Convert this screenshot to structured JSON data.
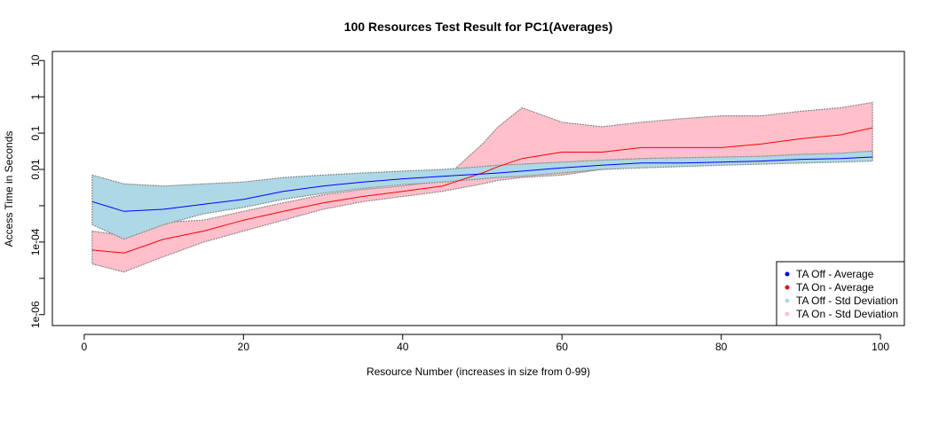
{
  "chart_data": {
    "type": "line",
    "title": "100 Resources Test Result for PC1(Averages)",
    "xlabel": "Resource Number (increases in size from 0-99)",
    "ylabel": "Access Time in Seconds",
    "xlim": [
      -4,
      103
    ],
    "ylim": [
      -6.3,
      1.25
    ],
    "y_scale": "log10",
    "x_ticks": [
      0,
      20,
      40,
      60,
      80,
      100
    ],
    "x_tick_labels": [
      "0",
      "20",
      "40",
      "60",
      "80",
      "100"
    ],
    "y_ticks": [
      1e-06,
      1e-05,
      0.0001,
      0.001,
      0.01,
      0.1,
      1,
      10
    ],
    "y_tick_labels": [
      "1e-06",
      "",
      "1e-04",
      "",
      "0.01",
      "0.1",
      "1",
      "10"
    ],
    "grid": false,
    "legend_position": "bottom-right",
    "legend": [
      {
        "label": "TA Off - Average",
        "color": "#0000ff"
      },
      {
        "label": "TA On - Average",
        "color": "#ff0000"
      },
      {
        "label": "TA Off - Std Deviation",
        "color": "#add8e6"
      },
      {
        "label": "TA On - Std Deviation",
        "color": "#ffc0cb"
      }
    ],
    "x": [
      1,
      5,
      10,
      15,
      20,
      25,
      30,
      35,
      40,
      45,
      50,
      52,
      55,
      60,
      65,
      70,
      75,
      80,
      85,
      90,
      95,
      99
    ],
    "series": [
      {
        "name": "TA Off - Average",
        "color": "#0000ff",
        "values": [
          0.0013,
          0.0007,
          0.0008,
          0.0011,
          0.0015,
          0.0025,
          0.0035,
          0.0045,
          0.0055,
          0.0065,
          0.0075,
          0.008,
          0.009,
          0.011,
          0.013,
          0.015,
          0.015,
          0.016,
          0.017,
          0.019,
          0.02,
          0.022
        ]
      },
      {
        "name": "TA On - Average",
        "color": "#ff0000",
        "values": [
          6e-05,
          5e-05,
          0.00012,
          0.0002,
          0.0004,
          0.0007,
          0.0012,
          0.0018,
          0.0025,
          0.0035,
          0.008,
          0.012,
          0.02,
          0.03,
          0.03,
          0.04,
          0.04,
          0.04,
          0.05,
          0.07,
          0.09,
          0.14
        ]
      },
      {
        "name": "TA Off - Std Deviation",
        "color": "#add8e6",
        "lower": [
          0.0003,
          0.00012,
          0.0003,
          0.0006,
          0.0009,
          0.0015,
          0.0022,
          0.003,
          0.0038,
          0.0045,
          0.0055,
          0.006,
          0.0065,
          0.008,
          0.01,
          0.011,
          0.012,
          0.013,
          0.014,
          0.015,
          0.016,
          0.017
        ],
        "upper": [
          0.007,
          0.004,
          0.0035,
          0.004,
          0.0045,
          0.006,
          0.007,
          0.008,
          0.009,
          0.01,
          0.012,
          0.013,
          0.014,
          0.016,
          0.018,
          0.02,
          0.021,
          0.022,
          0.023,
          0.026,
          0.028,
          0.032
        ]
      },
      {
        "name": "TA On - Std Deviation",
        "color": "#ffc0cb",
        "lower": [
          2.5e-05,
          1.5e-05,
          4e-05,
          0.0001,
          0.0002,
          0.0004,
          0.0008,
          0.0013,
          0.0018,
          0.0025,
          0.004,
          0.005,
          0.006,
          0.007,
          0.01,
          0.012,
          0.013,
          0.014,
          0.015,
          0.016,
          0.017,
          0.018
        ]
      },
      {
        "name": "",
        "color": "#ffc0cb",
        "values": [
          0.0002,
          0.00015,
          0.00035,
          0.0004,
          0.0007,
          0.0012,
          0.002,
          0.0028,
          0.0035,
          0.005,
          0.05,
          0.15,
          0.5,
          0.2,
          0.15,
          0.2,
          0.25,
          0.3,
          0.3,
          0.4,
          0.5,
          0.7
        ]
      }
    ]
  }
}
